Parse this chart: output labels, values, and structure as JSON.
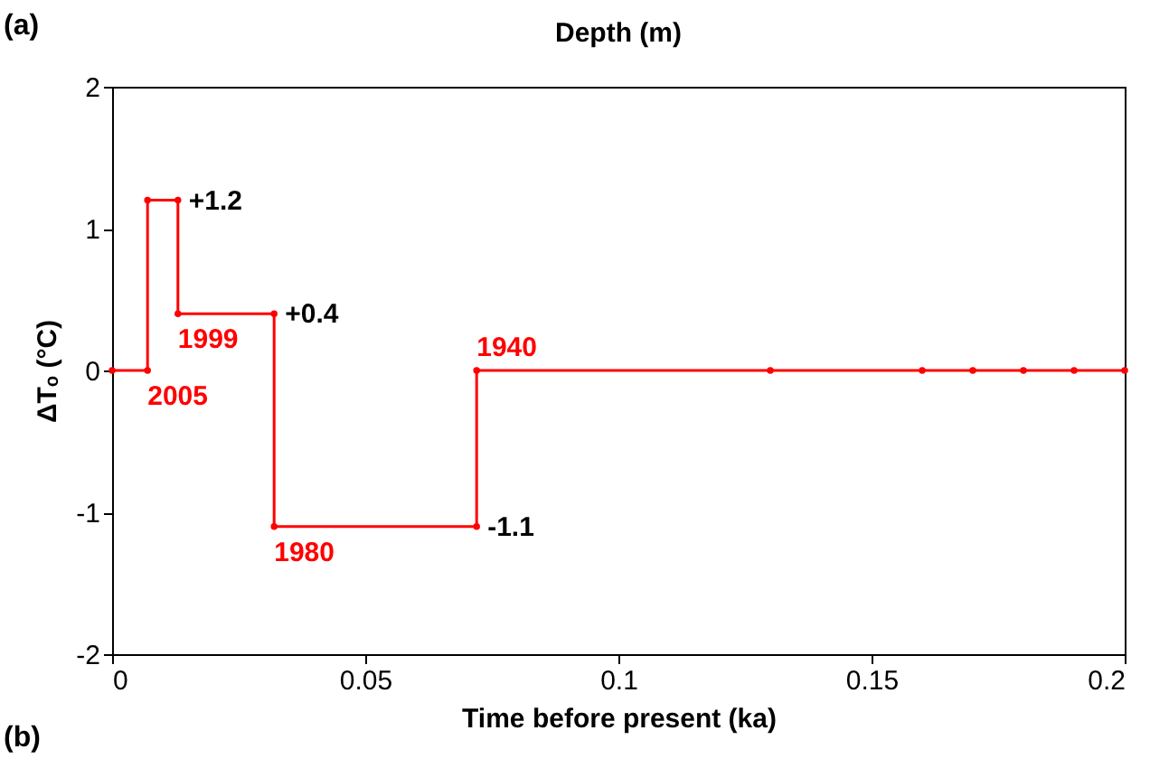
{
  "chart_data": {
    "type": "line",
    "xlabel": "Time before present (ka)",
    "ylabel": "ΔTₒ (°C)",
    "xlim": [
      0,
      0.2
    ],
    "xticks": [
      0,
      0.05,
      0.1,
      0.15,
      0.2
    ],
    "ylim": [
      -2,
      2
    ],
    "yticks": [
      -2,
      -1,
      0,
      1,
      2
    ],
    "grid": false,
    "marker": "circle",
    "line_style": "solid",
    "series": [
      {
        "color": "#ff0000",
        "x": [
          0,
          0.007,
          0.007,
          0.013,
          0.013,
          0.032,
          0.032,
          0.072,
          0.072,
          0.13,
          0.16,
          0.17,
          0.18,
          0.19,
          0.2
        ],
        "values": [
          0,
          0,
          1.2,
          1.2,
          0.4,
          0.4,
          -1.1,
          -1.1,
          0,
          0,
          0,
          0,
          0,
          0,
          0
        ]
      }
    ],
    "annotations": [
      "(a)",
      "Depth (m)",
      "(b)",
      {
        "text": "2005",
        "x": 0.007,
        "y": 0
      },
      {
        "text": "1999",
        "x": 0.013,
        "y": 0.4
      },
      {
        "text": "1980",
        "x": 0.032,
        "y": -1.1
      },
      {
        "text": "1940",
        "x": 0.072,
        "y": 0
      },
      {
        "text": "+1.2",
        "x": 0.013,
        "y": 1.2
      },
      {
        "text": "+0.4",
        "x": 0.032,
        "y": 0.4
      },
      {
        "text": "-1.1",
        "x": 0.072,
        "y": -1.1
      }
    ]
  }
}
